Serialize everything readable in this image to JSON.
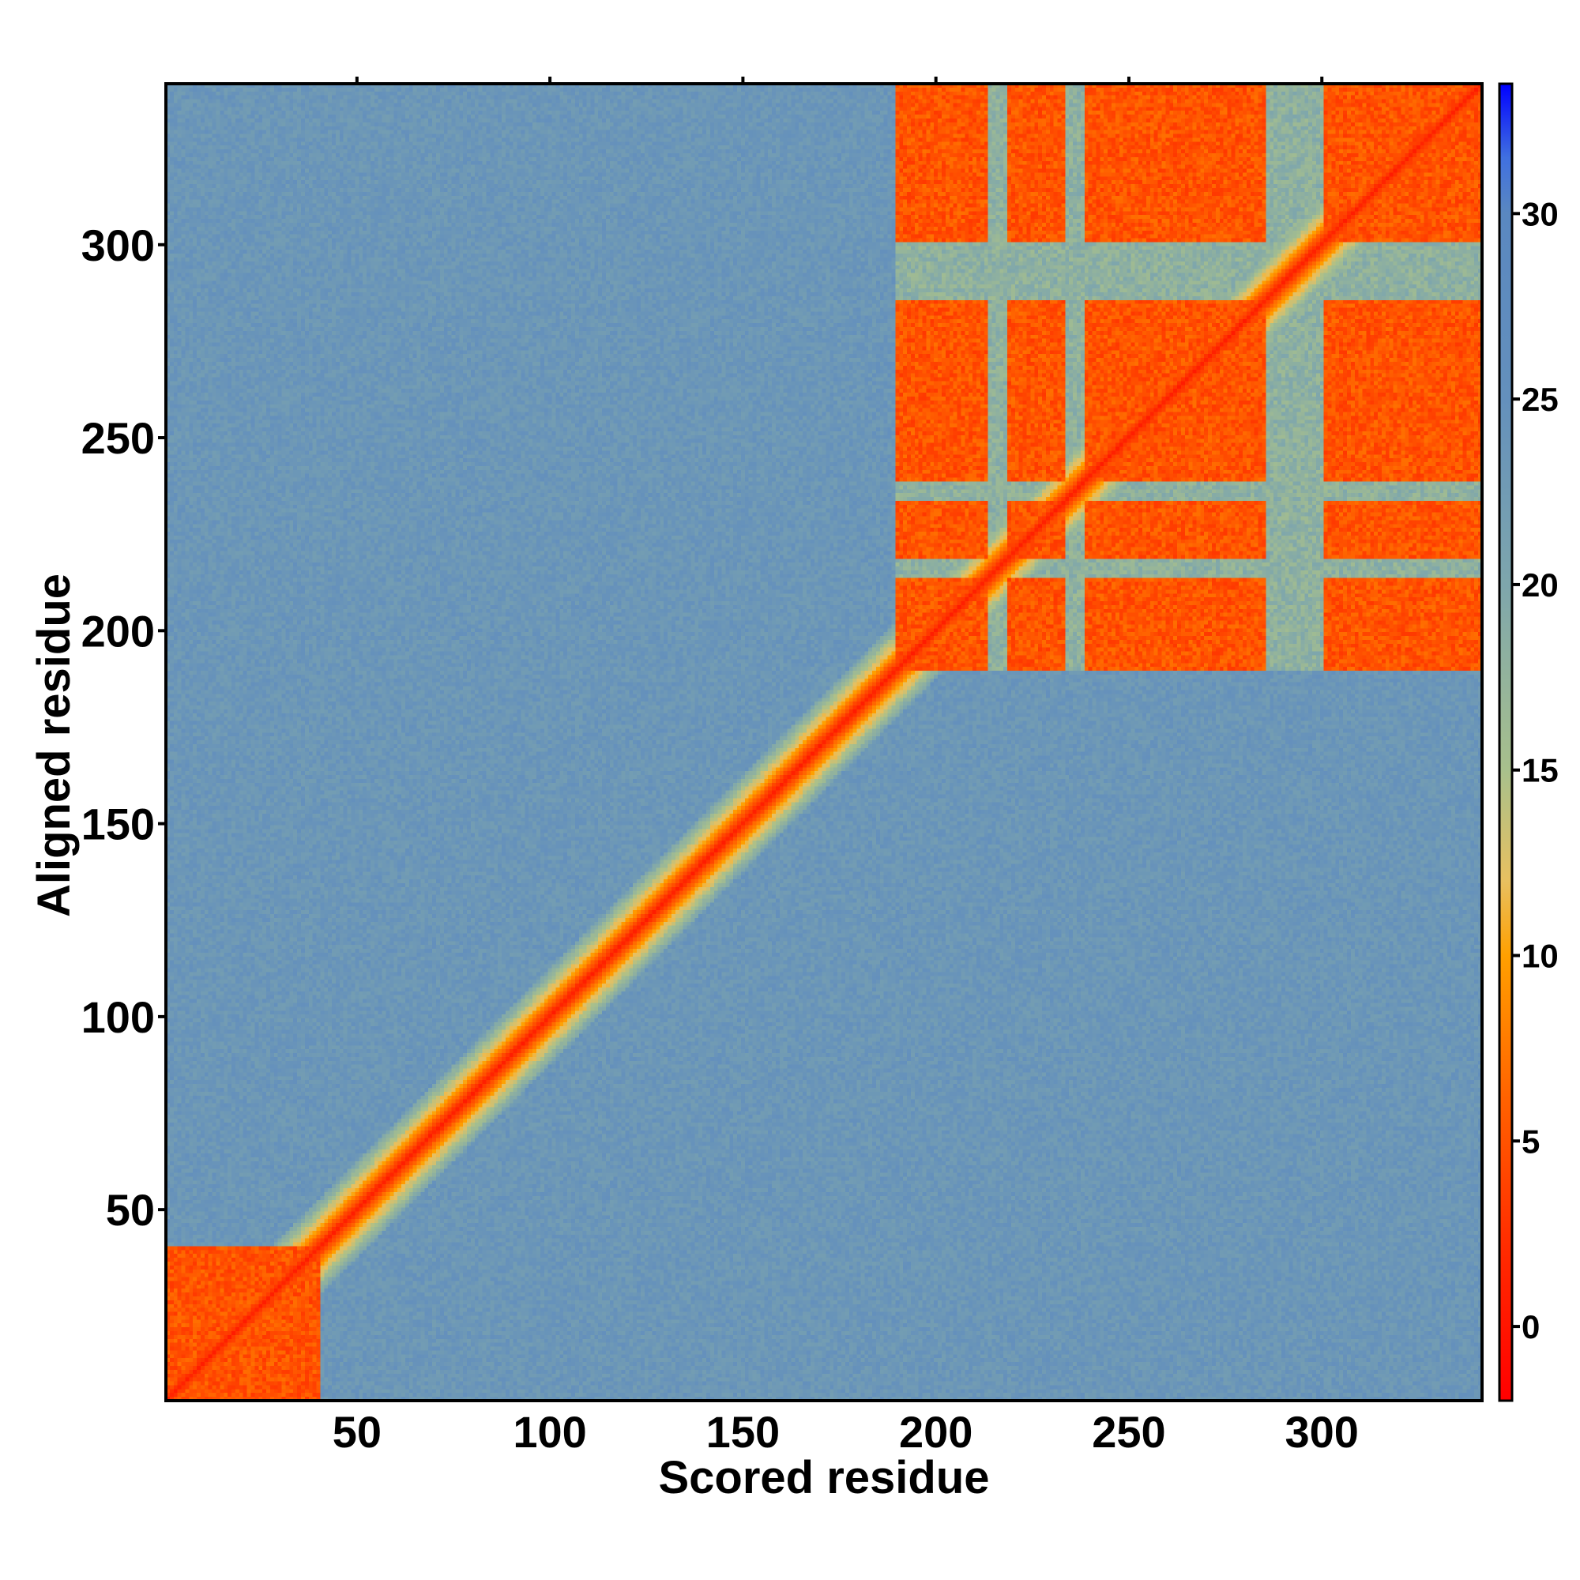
{
  "chart_data": {
    "type": "heatmap",
    "title": "",
    "xlabel": "Scored residue",
    "ylabel": "Aligned residue",
    "x_range": [
      1,
      341
    ],
    "y_range": [
      1,
      341
    ],
    "x_ticks": [
      50,
      100,
      150,
      200,
      250,
      300
    ],
    "y_ticks": [
      50,
      100,
      150,
      200,
      250,
      300
    ],
    "colorbar": {
      "range": [
        -2,
        33.5
      ],
      "ticks": [
        0,
        5,
        10,
        15,
        20,
        25,
        30
      ],
      "stops": [
        {
          "value": -2,
          "color": "#ff0000"
        },
        {
          "value": 2,
          "color": "#ff2a00"
        },
        {
          "value": 6,
          "color": "#ff6000"
        },
        {
          "value": 10,
          "color": "#ffa000"
        },
        {
          "value": 12,
          "color": "#e8c060"
        },
        {
          "value": 15,
          "color": "#a8c08c"
        },
        {
          "value": 20,
          "color": "#7ea6ac"
        },
        {
          "value": 25,
          "color": "#6490bc"
        },
        {
          "value": 30,
          "color": "#5a88c0"
        },
        {
          "value": 31.5,
          "color": "#4070e0"
        },
        {
          "value": 33.5,
          "color": "#0000ff"
        }
      ]
    },
    "regions": [
      {
        "name": "diagonal",
        "value": 0.5
      },
      {
        "name": "n-terminal-block",
        "residues": [
          1,
          40
        ],
        "value": 3
      },
      {
        "name": "c-terminal-block",
        "residues": [
          190,
          341
        ],
        "value": 3
      },
      {
        "name": "c-terminal-gaps",
        "residues": [
          [
            214,
            218
          ],
          [
            234,
            238
          ],
          [
            286,
            300
          ]
        ],
        "value": 20
      },
      {
        "name": "background",
        "value": 25
      }
    ]
  }
}
